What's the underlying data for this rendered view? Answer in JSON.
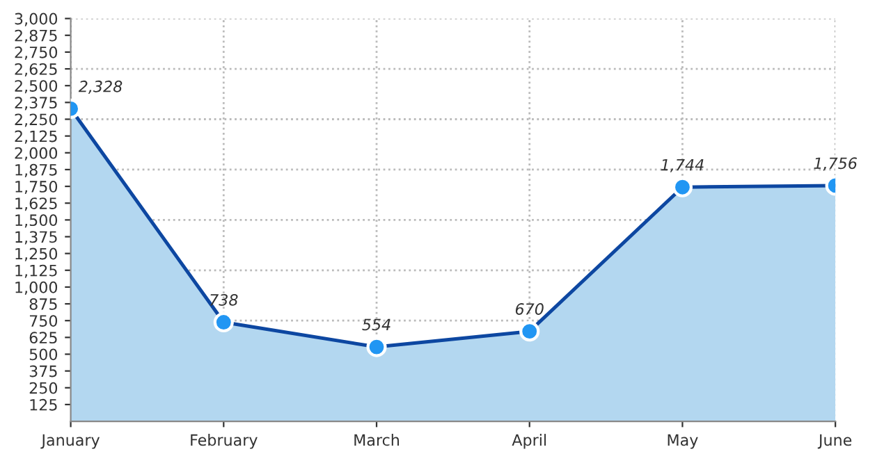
{
  "chart_data": {
    "type": "area",
    "categories": [
      "January",
      "February",
      "March",
      "April",
      "May",
      "June"
    ],
    "series": [
      {
        "color": "#0d47a1",
        "values": [
          2328,
          738,
          554,
          670,
          1744,
          1756
        ]
      }
    ],
    "ylim": [
      0,
      3000
    ],
    "yticks": [
      {
        "value": 125,
        "label": "125"
      },
      {
        "value": 250,
        "label": "250"
      },
      {
        "value": 375,
        "label": "375"
      },
      {
        "value": 500,
        "label": "500"
      },
      {
        "value": 625,
        "label": "625"
      },
      {
        "value": 750,
        "label": "750"
      },
      {
        "value": 875,
        "label": "875"
      },
      {
        "value": 1000,
        "label": "1,000"
      },
      {
        "value": 1125,
        "label": "1,125"
      },
      {
        "value": 1250,
        "label": "1,250"
      },
      {
        "value": 1375,
        "label": "1,375"
      },
      {
        "value": 1500,
        "label": "1,500"
      },
      {
        "value": 1625,
        "label": "1,625"
      },
      {
        "value": 1750,
        "label": "1,750"
      },
      {
        "value": 1875,
        "label": "1,875"
      },
      {
        "value": 2000,
        "label": "2,000"
      },
      {
        "value": 2125,
        "label": "2,125"
      },
      {
        "value": 2250,
        "label": "2,250"
      },
      {
        "value": 2375,
        "label": "2,375"
      },
      {
        "value": 2500,
        "label": "2,500"
      },
      {
        "value": 2625,
        "label": "2,625"
      },
      {
        "value": 2750,
        "label": "2,750"
      },
      {
        "value": 2875,
        "label": "2,875"
      },
      {
        "value": 3000,
        "label": "3,000"
      }
    ],
    "value_labels": [
      "2,328",
      "738",
      "554",
      "670",
      "1,744",
      "1,756"
    ],
    "grid": true,
    "marker": "circle",
    "line_style": "solid",
    "legend": false
  }
}
